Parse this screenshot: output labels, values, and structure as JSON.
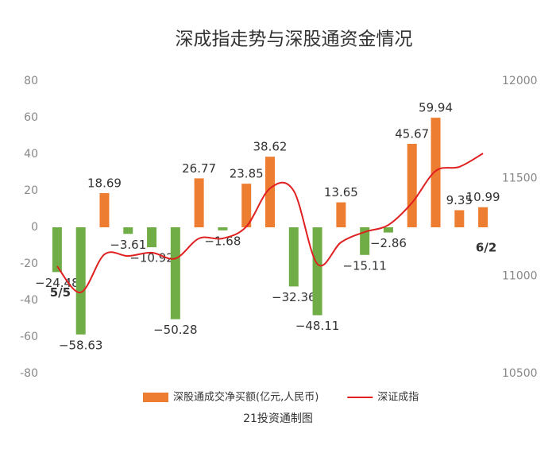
{
  "chart_data": {
    "type": "bar-line",
    "title": "深成指走势与深股通资金情况",
    "source": "21投资通制图",
    "categories": [
      "5/5",
      null,
      null,
      null,
      null,
      null,
      null,
      null,
      null,
      null,
      null,
      null,
      null,
      null,
      null,
      null,
      null,
      null,
      "6/2"
    ],
    "series": [
      {
        "name": "深股通成交净买额(亿元,人民币)",
        "type": "bar",
        "color": "#ed7d31",
        "negative_color": "#70ad47",
        "values": [
          -24.48,
          -58.63,
          18.69,
          -3.61,
          -10.92,
          -50.28,
          26.77,
          -1.68,
          23.85,
          38.62,
          -32.36,
          -48.11,
          13.65,
          -15.11,
          -2.86,
          45.67,
          59.94,
          9.35,
          10.99
        ],
        "value_labels": [
          "−24.48",
          "−58.63",
          "18.69",
          "−3.61",
          "−10.92",
          "−50.28",
          "26.77",
          "−1.68",
          "23.85",
          "38.62",
          "−32.36",
          "−48.11",
          "13.65",
          "−15.11",
          "−2.86",
          "45.67",
          "59.94",
          "9.35",
          "10.99"
        ]
      },
      {
        "name": "深证成指",
        "type": "line",
        "axis": "y2",
        "color": "#e02020",
        "values": [
          11050,
          10916,
          11111,
          11103,
          11120,
          11090,
          11193,
          11193,
          11254,
          11450,
          11437,
          11062,
          11173,
          11226,
          11262,
          11376,
          11539,
          11560,
          11629
        ]
      }
    ],
    "ylim": [
      -80,
      80
    ],
    "yticks": [
      -80,
      -60,
      -40,
      -20,
      0,
      20,
      40,
      60,
      80
    ],
    "y2lim": [
      10500,
      12000
    ],
    "y2ticks": [
      10500,
      11000,
      11500,
      12000
    ],
    "legend": "bottom"
  }
}
